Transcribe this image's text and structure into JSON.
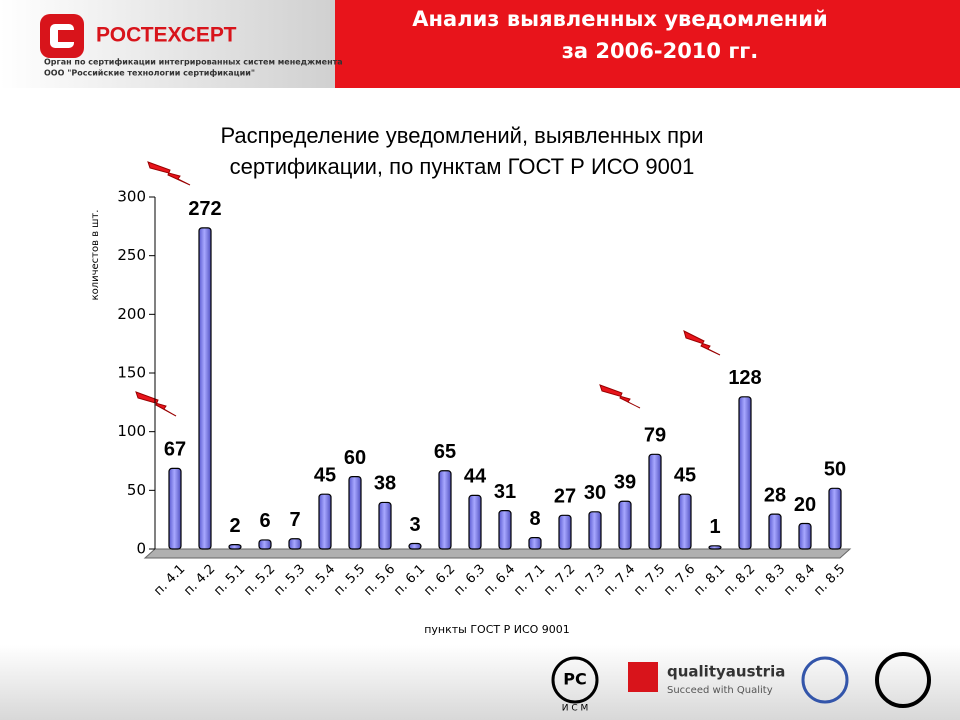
{
  "header": {
    "logo": "РОСТЕХСЕРТ",
    "org_lines": [
      "Орган по сертификации интегрированных систем менеджмента",
      "ООО \"Российские технологии сертификации\""
    ],
    "title": [
      "Анализ выявленных уведомлений",
      "за 2006-2010 гг."
    ]
  },
  "chart_data": {
    "type": "bar",
    "title": [
      "Распределение уведомлений, выявленных при",
      "сертификации, по пунктам ГОСТ Р ИСО 9001"
    ],
    "x_label": "пункты ГОСТ Р ИСО 9001",
    "y_label": "количестов в шт.",
    "categories": [
      "п. 4.1",
      "п. 4.2",
      "п. 5.1",
      "п. 5.2",
      "п. 5.3",
      "п. 5.4",
      "п. 5.5",
      "п. 5.6",
      "п. 6.1",
      "п. 6.2",
      "п. 6.3",
      "п. 6.4",
      "п. 7.1",
      "п. 7.2",
      "п. 7.3",
      "п. 7.4",
      "п. 7.5",
      "п. 7.6",
      "п. 8.1",
      "п. 8.2",
      "п. 8.3",
      "п. 8.4",
      "п. 8.5"
    ],
    "values": [
      67,
      272,
      2,
      6,
      7,
      45,
      60,
      38,
      3,
      65,
      44,
      31,
      8,
      27,
      30,
      39,
      79,
      45,
      1,
      128,
      28,
      20,
      50
    ],
    "color": "#8c8cf0",
    "ylim": [
      0,
      300
    ],
    "yticks": [
      0,
      50,
      100,
      150,
      200,
      250,
      300
    ]
  },
  "footer": {
    "gost_mark": "И С М",
    "qa_name": "qualityaustria",
    "qa_slogan": "Succeed with Quality"
  }
}
